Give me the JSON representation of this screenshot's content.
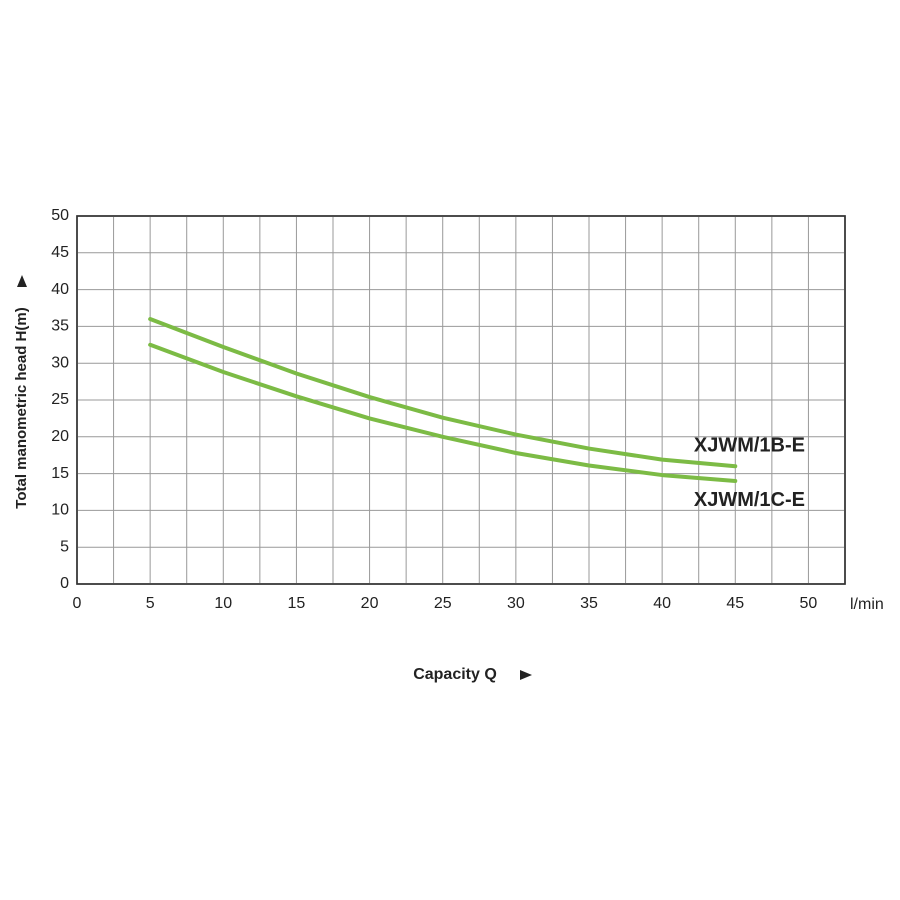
{
  "chart_data": {
    "type": "line",
    "x_label": "Capacity Q",
    "x_unit": "l/min",
    "y_label": "Total manometric head H(m)",
    "x": [
      5,
      10,
      15,
      20,
      25,
      30,
      35,
      40,
      45
    ],
    "series": [
      {
        "name": "XJWM/1B-E",
        "color": "#7cbb45",
        "values": [
          36,
          32.2,
          28.6,
          25.4,
          22.6,
          20.3,
          18.4,
          16.9,
          16
        ]
      },
      {
        "name": "XJWM/1C-E",
        "color": "#7cbb45",
        "values": [
          32.5,
          28.8,
          25.5,
          22.5,
          20,
          17.8,
          16.1,
          14.8,
          14
        ]
      }
    ],
    "xlim": [
      0,
      52.5
    ],
    "ylim": [
      0,
      50
    ],
    "xticks": [
      0,
      5,
      10,
      15,
      20,
      25,
      30,
      35,
      40,
      45,
      50
    ],
    "yticks": [
      0,
      5,
      10,
      15,
      20,
      25,
      30,
      35,
      40,
      45,
      50
    ],
    "minor_xticks": [
      2.5,
      7.5,
      12.5,
      17.5,
      22.5,
      27.5,
      32.5,
      37.5,
      42.5,
      47.5,
      52.5
    ],
    "grid": true
  }
}
